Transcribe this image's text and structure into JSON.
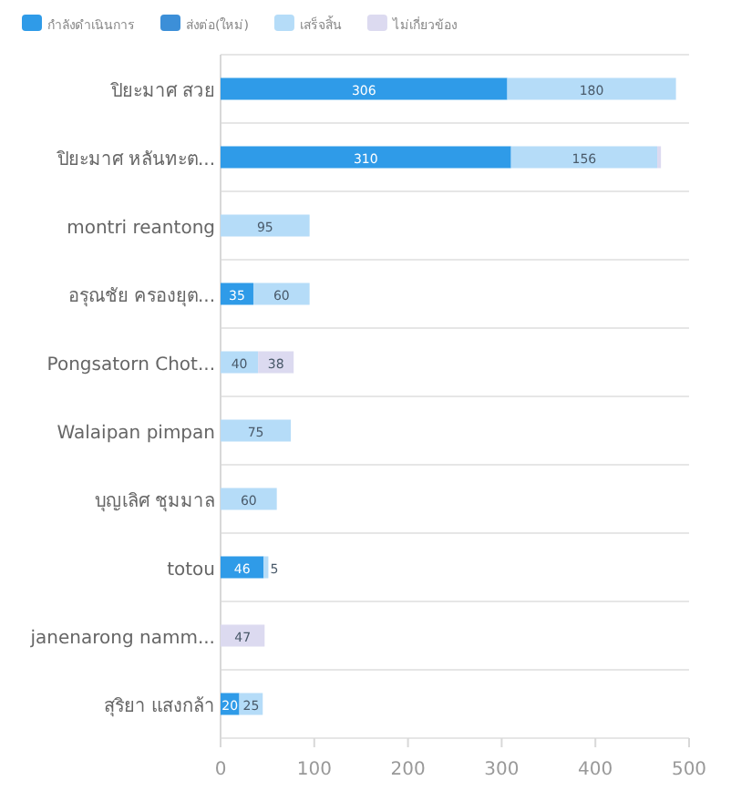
{
  "chart_data": {
    "type": "bar",
    "orientation": "horizontal",
    "stacked": true,
    "categories": [
      "ปิยะมาศ สวย",
      "ปิยะมาศ หลันทะต...",
      "montri reantong",
      "อรุณชัย ครองยุต...",
      "Pongsatorn Chot...",
      "Walaipan pimpan",
      "บุญเลิศ ชุมมาล",
      "totou",
      "janenarong namm...",
      "สุริยา แสงกล้า"
    ],
    "series": [
      {
        "name": "กำลังดำเนินการ",
        "color": "#2f9be8",
        "values": [
          306,
          310,
          null,
          35,
          null,
          null,
          null,
          46,
          null,
          20
        ],
        "value_labels": [
          "306",
          "310",
          null,
          "35",
          null,
          null,
          null,
          "46",
          null,
          "20"
        ]
      },
      {
        "name": "ส่งต่อ(ใหม่)",
        "color": "#3c8fd8",
        "values": [
          null,
          null,
          null,
          null,
          null,
          null,
          null,
          null,
          null,
          null
        ]
      },
      {
        "name": "เสร็จสิ้น",
        "color": "#b5dcf8",
        "values": [
          180,
          156,
          95,
          60,
          40,
          75,
          60,
          5,
          null,
          25
        ],
        "value_labels": [
          "180",
          "156",
          "95",
          "60",
          "40",
          "75",
          "60",
          "5",
          null,
          "25"
        ]
      },
      {
        "name": "ไม่เกี่ยวข้อง",
        "color": "#dcdaf0",
        "values": [
          null,
          4,
          null,
          null,
          38,
          null,
          null,
          null,
          47,
          null
        ],
        "value_labels": [
          null,
          null,
          null,
          null,
          "38",
          null,
          null,
          null,
          "47",
          null
        ]
      }
    ],
    "xlim": [
      0,
      500
    ],
    "xticks": [
      0,
      100,
      200,
      300,
      400,
      500
    ],
    "grid": "y",
    "legend": "top"
  }
}
